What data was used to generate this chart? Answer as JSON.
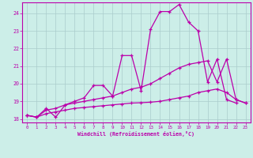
{
  "xlabel": "Windchill (Refroidissement éolien,°C)",
  "bg_color": "#cceee8",
  "grid_color": "#aacccc",
  "line_color": "#bb00aa",
  "xlim": [
    -0.5,
    23.5
  ],
  "ylim": [
    17.8,
    24.6
  ],
  "yticks": [
    18,
    19,
    20,
    21,
    22,
    23,
    24
  ],
  "xticks": [
    0,
    1,
    2,
    3,
    4,
    5,
    6,
    7,
    8,
    9,
    10,
    11,
    12,
    13,
    14,
    15,
    16,
    17,
    18,
    19,
    20,
    21,
    22,
    23
  ],
  "series": [
    {
      "x": [
        0,
        1,
        2,
        3,
        4,
        5,
        6,
        7,
        8,
        9,
        10,
        11,
        12,
        13,
        14,
        15,
        16,
        17,
        18,
        19,
        20,
        21,
        22
      ],
      "y": [
        18.2,
        18.1,
        18.6,
        18.1,
        18.8,
        19.0,
        19.2,
        19.9,
        19.9,
        19.3,
        21.6,
        21.6,
        19.6,
        23.1,
        24.1,
        24.1,
        24.5,
        23.5,
        23.0,
        20.1,
        21.4,
        19.1,
        18.9
      ]
    },
    {
      "x": [
        0,
        1,
        2,
        3,
        4,
        5,
        6,
        7,
        8,
        9,
        10,
        11,
        12,
        13,
        14,
        15,
        16,
        17,
        18,
        19,
        20,
        21,
        22,
        23
      ],
      "y": [
        18.2,
        18.1,
        18.5,
        18.6,
        18.8,
        18.9,
        19.0,
        19.1,
        19.2,
        19.3,
        19.5,
        19.7,
        19.8,
        20.0,
        20.3,
        20.6,
        20.9,
        21.1,
        21.2,
        21.3,
        20.1,
        21.4,
        19.1,
        18.9
      ]
    },
    {
      "x": [
        0,
        1,
        2,
        3,
        4,
        5,
        6,
        7,
        8,
        9,
        10,
        11,
        12,
        13,
        14,
        15,
        16,
        17,
        18,
        19,
        20,
        21,
        22,
        23
      ],
      "y": [
        18.2,
        18.1,
        18.3,
        18.4,
        18.5,
        18.6,
        18.65,
        18.7,
        18.75,
        18.8,
        18.85,
        18.9,
        18.92,
        18.95,
        19.0,
        19.1,
        19.2,
        19.3,
        19.5,
        19.6,
        19.7,
        19.5,
        19.1,
        18.9
      ]
    }
  ]
}
